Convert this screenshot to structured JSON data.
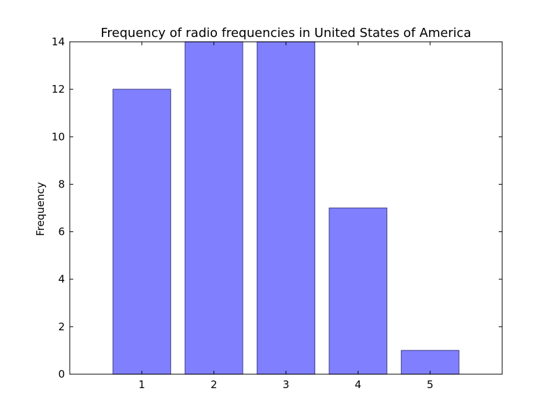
{
  "chart_data": {
    "type": "bar",
    "title": "Frequency of radio frequencies in United States of America",
    "xlabel": "",
    "ylabel": "Frequency",
    "categories": [
      "1",
      "2",
      "3",
      "4",
      "5"
    ],
    "values": [
      12,
      14,
      14,
      7,
      1
    ],
    "xlim": [
      0,
      6
    ],
    "ylim": [
      0,
      14
    ],
    "yticks": [
      0,
      2,
      4,
      6,
      8,
      10,
      12,
      14
    ],
    "grid": false,
    "legend": "none",
    "colors": {
      "bar_fill": "#8080ff",
      "bar_edge": "#4d4d99",
      "axes": "#000000"
    }
  }
}
